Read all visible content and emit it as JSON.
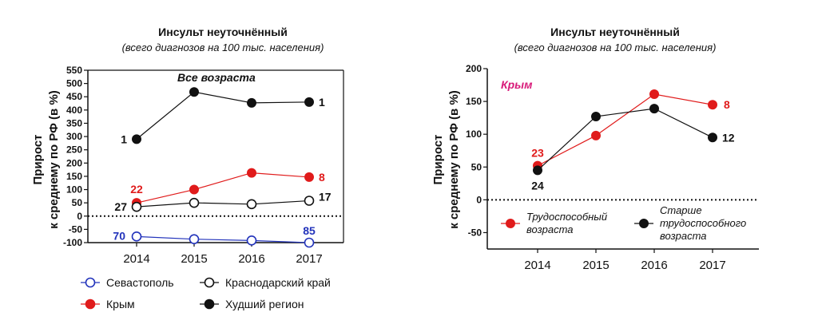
{
  "chart_data": [
    {
      "type": "line",
      "title": "Инсульт неуточнённый",
      "subtitle": "(всего диагнозов на 100 тыс. населения)",
      "annotation": "Все возраста",
      "ylabel_line1": "Прирост",
      "ylabel_line2": "к среднему по РФ (в %)",
      "x": [
        "2014",
        "2015",
        "2016",
        "2017"
      ],
      "ylim": [
        -100,
        550
      ],
      "yticks": [
        -100,
        -50,
        0,
        50,
        100,
        150,
        200,
        250,
        300,
        350,
        400,
        450,
        500,
        550
      ],
      "series": [
        {
          "name": "Севастополь",
          "color": "#2233bb",
          "marker": "open",
          "values": [
            -77,
            -87,
            -92,
            -100
          ],
          "labels": [
            {
              "index": 0,
              "text": "70"
            },
            {
              "index": 3,
              "text": "85"
            }
          ]
        },
        {
          "name": "Крым",
          "color": "#e01b1b",
          "marker": "filled",
          "values": [
            50,
            100,
            163,
            147
          ],
          "labels": [
            {
              "index": 0,
              "text": "22"
            },
            {
              "index": 3,
              "text": "8"
            }
          ]
        },
        {
          "name": "Краснодарский край",
          "color": "#111111",
          "marker": "open",
          "values": [
            35,
            50,
            45,
            58
          ],
          "labels": [
            {
              "index": 0,
              "text": "27"
            },
            {
              "index": 3,
              "text": "17"
            }
          ]
        },
        {
          "name": "Худший регион",
          "color": "#111111",
          "marker": "filled",
          "values": [
            290,
            468,
            427,
            430
          ],
          "labels": [
            {
              "index": 0,
              "text": "1"
            },
            {
              "index": 3,
              "text": "1"
            }
          ]
        }
      ],
      "legend_order": [
        "Севастополь",
        "Краснодарский край",
        "Крым",
        "Худший регион"
      ]
    },
    {
      "type": "line",
      "title": "Инсульт неуточнённый",
      "subtitle": "(всего диагнозов на 100 тыс. населения)",
      "annotation": "Крым",
      "annotation_color": "#d81b7a",
      "ylabel_line1": "Прирост",
      "ylabel_line2": "к среднему по РФ (в %)",
      "x": [
        "2014",
        "2015",
        "2016",
        "2017"
      ],
      "ylim": [
        -75,
        200
      ],
      "yticks": [
        -50,
        0,
        50,
        100,
        150,
        200
      ],
      "series": [
        {
          "name": "Трудоспособный возраста",
          "legend_lines": [
            "Трудоспособный",
            "возраста"
          ],
          "color": "#e01b1b",
          "marker": "filled",
          "values": [
            52,
            98,
            161,
            145
          ],
          "labels": [
            {
              "index": 0,
              "text": "23"
            },
            {
              "index": 3,
              "text": "8"
            }
          ]
        },
        {
          "name": "Старше трудоспособного возраста",
          "legend_lines": [
            "Старше",
            "трудоспособного",
            "возраста"
          ],
          "color": "#111111",
          "marker": "filled",
          "values": [
            45,
            127,
            139,
            95
          ],
          "labels": [
            {
              "index": 0,
              "text": "24"
            },
            {
              "index": 3,
              "text": "12"
            }
          ]
        }
      ]
    }
  ]
}
